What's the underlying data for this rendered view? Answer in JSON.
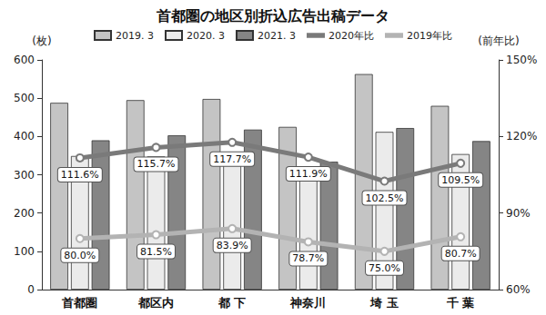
{
  "chart_data": {
    "type": "bar",
    "title": "首都圏の地区別折込広告出稿データ",
    "y_label": "(枚)",
    "y2_label": "(前年比)",
    "categories": [
      "首都圏",
      "都区内",
      "都 下",
      "神奈川",
      "埼 玉",
      "千 葉"
    ],
    "series": [
      {
        "name": "2019. 3",
        "type": "bar",
        "color": "#c4c4c4",
        "values": [
          488,
          495,
          498,
          425,
          563,
          480
        ]
      },
      {
        "name": "2020. 3",
        "type": "bar",
        "color": "#ebebeb",
        "values": [
          349,
          348,
          355,
          298,
          412,
          354
        ]
      },
      {
        "name": "2021. 3",
        "type": "bar",
        "color": "#858585",
        "values": [
          390,
          403,
          418,
          334,
          422,
          388
        ]
      },
      {
        "name": "2020年比",
        "type": "line",
        "axis": "y2",
        "color": "#7a7a7a",
        "marker": "circle",
        "data_labels": true,
        "values": [
          111.6,
          115.7,
          117.7,
          111.9,
          102.5,
          109.5
        ],
        "value_labels": [
          "111.6%",
          "115.7%",
          "117.7%",
          "111.9%",
          "102.5%",
          "109.5%"
        ]
      },
      {
        "name": "2019年比",
        "type": "line",
        "axis": "y2",
        "color": "#b3b3b3",
        "marker": "circle",
        "data_labels": true,
        "values": [
          80.0,
          81.5,
          83.9,
          78.7,
          75.0,
          80.7
        ],
        "value_labels": [
          "80.0%",
          "81.5%",
          "83.9%",
          "78.7%",
          "75.0%",
          "80.7%"
        ]
      }
    ],
    "ylim": [
      0,
      600
    ],
    "yticks": [
      0,
      100,
      200,
      300,
      400,
      500,
      600
    ],
    "y2lim": [
      60,
      150
    ],
    "y2ticks": [
      {
        "value": 60,
        "label": "60%"
      },
      {
        "value": 90,
        "label": "90%"
      },
      {
        "value": 120,
        "label": "120%"
      },
      {
        "value": 150,
        "label": "150%"
      }
    ],
    "grid": false,
    "legend": "top"
  }
}
